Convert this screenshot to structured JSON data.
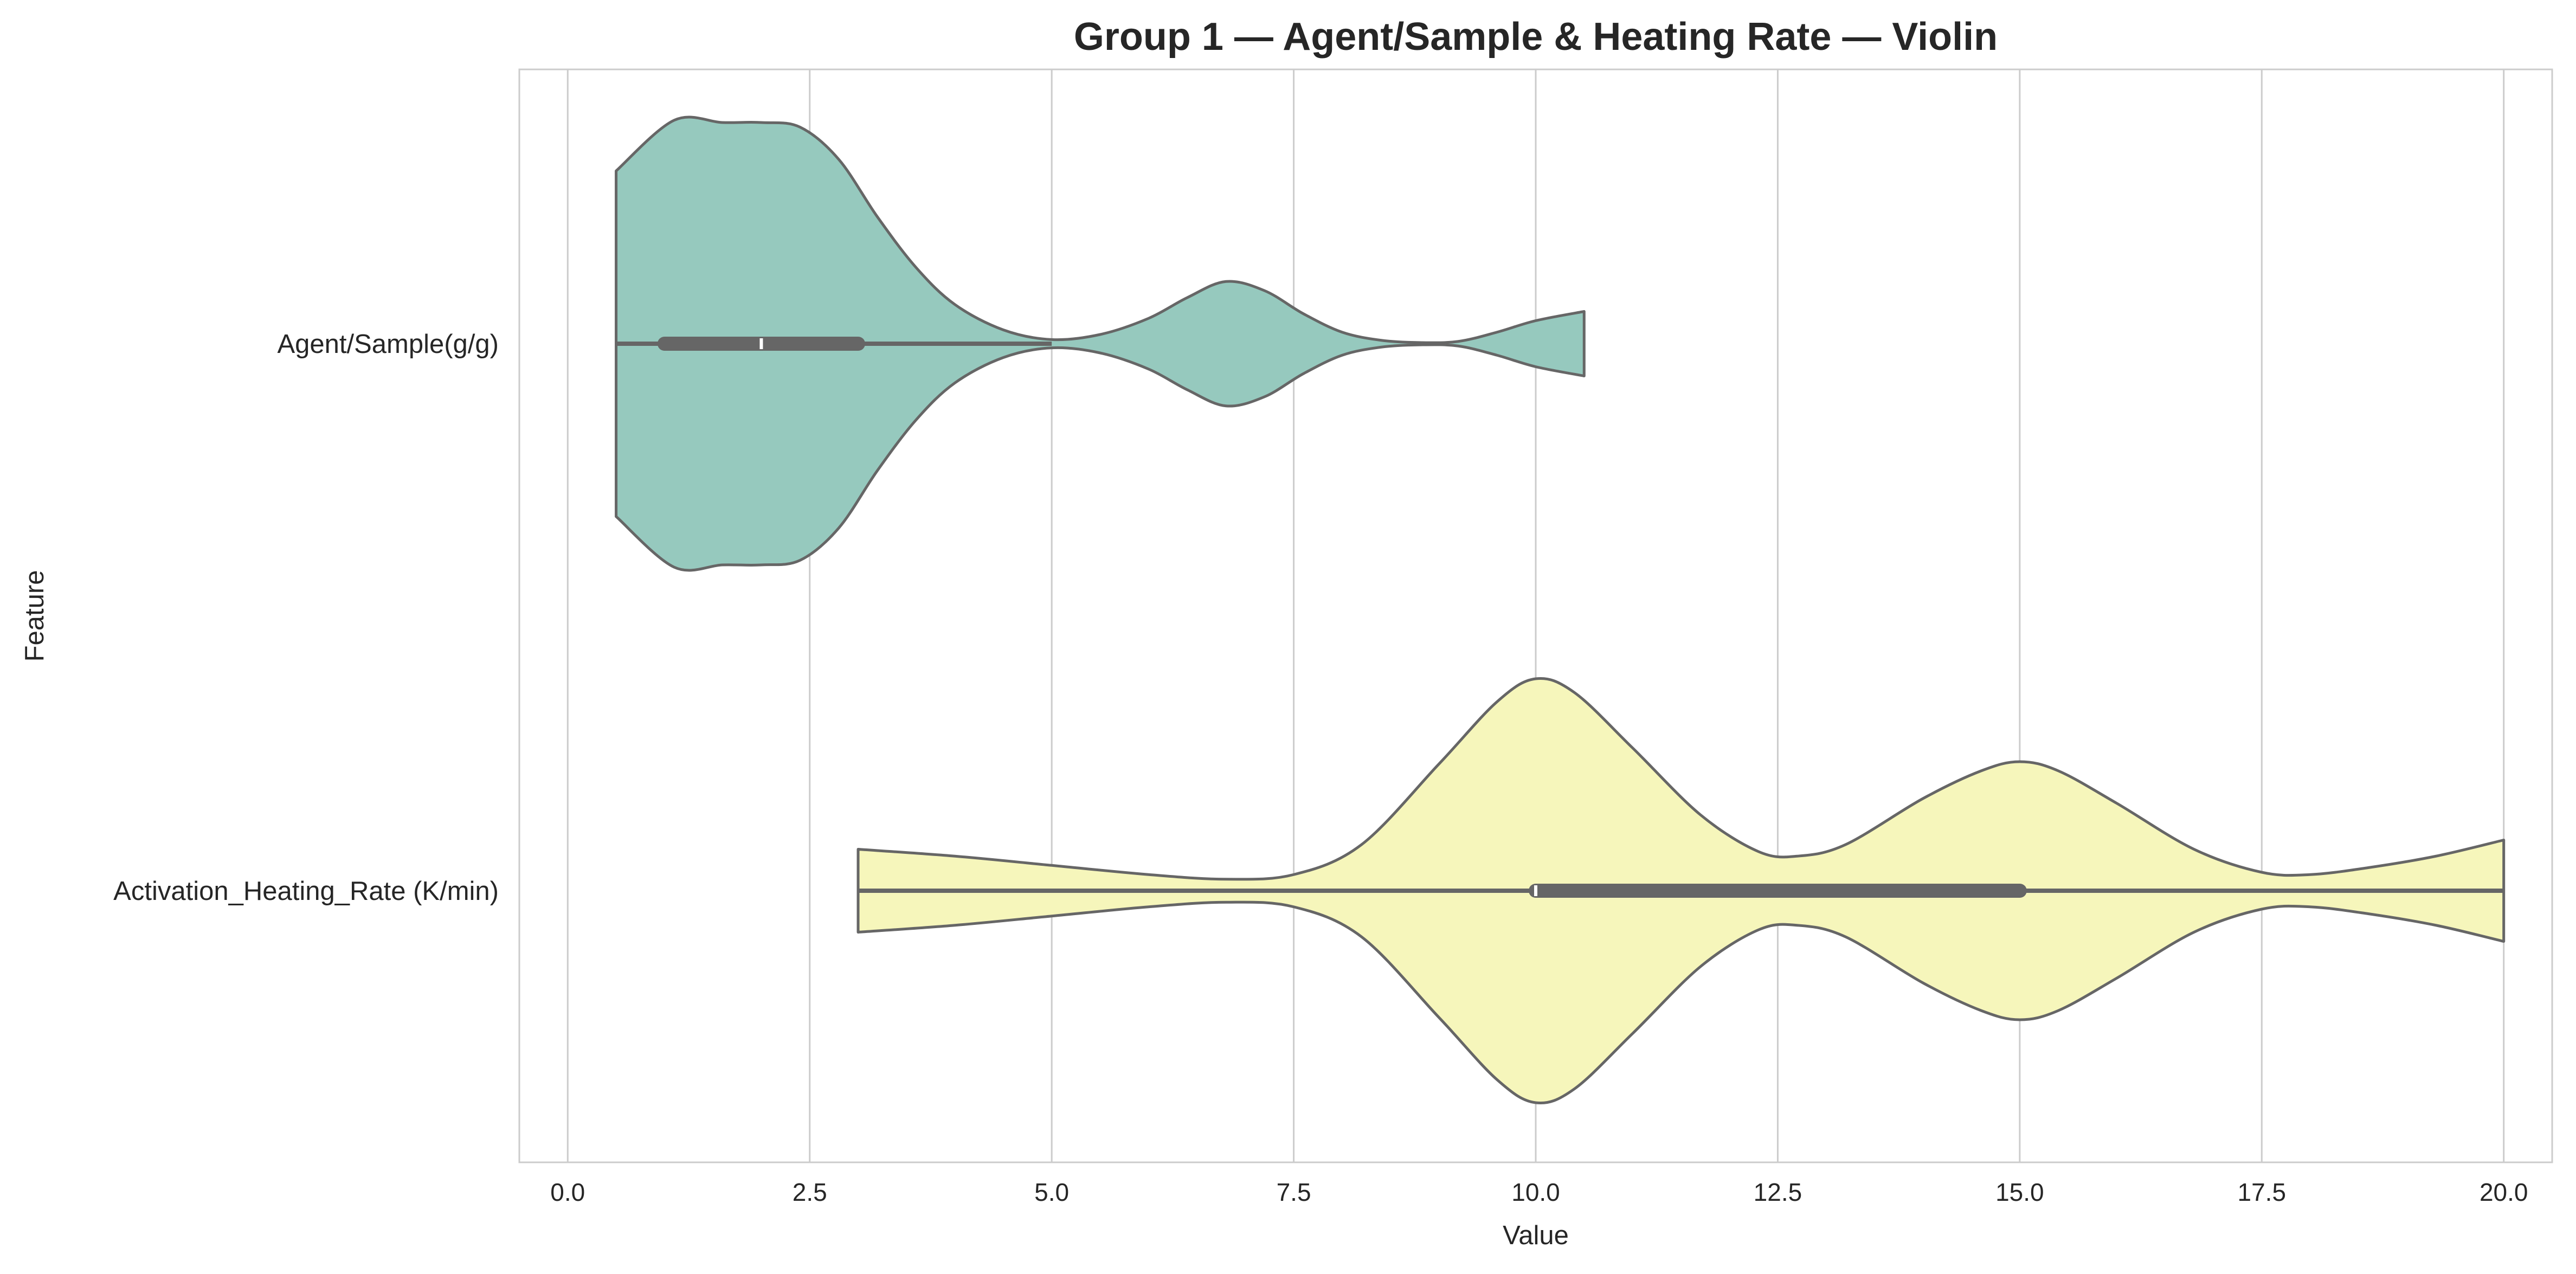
{
  "chart_data": {
    "type": "violin",
    "orientation": "horizontal",
    "title": "Group 1 — Agent/Sample & Heating Rate — Violin",
    "xlabel": "Value",
    "ylabel": "Feature",
    "xlim": [
      -0.5,
      20.5
    ],
    "xticks": [
      0.0,
      2.5,
      5.0,
      7.5,
      10.0,
      12.5,
      15.0,
      17.5,
      20.0
    ],
    "xtick_labels": [
      "0.0",
      "2.5",
      "5.0",
      "7.5",
      "10.0",
      "12.5",
      "15.0",
      "17.5",
      "20.0"
    ],
    "grid": "vertical",
    "series": [
      {
        "name": "Agent/Sample(g/g)",
        "color": "#96c9be",
        "range": [
          0.5,
          10.5
        ],
        "whisker": [
          0.5,
          5.0
        ],
        "q1": 1.0,
        "median": 2.0,
        "q3": 3.0,
        "density": [
          [
            0.5,
            0.75
          ],
          [
            1.1,
            0.97
          ],
          [
            1.6,
            0.96
          ],
          [
            2.0,
            0.96
          ],
          [
            2.4,
            0.94
          ],
          [
            2.8,
            0.8
          ],
          [
            3.2,
            0.55
          ],
          [
            3.6,
            0.33
          ],
          [
            4.0,
            0.17
          ],
          [
            4.5,
            0.06
          ],
          [
            5.0,
            0.018
          ],
          [
            5.5,
            0.04
          ],
          [
            6.0,
            0.11
          ],
          [
            6.4,
            0.2
          ],
          [
            6.8,
            0.27
          ],
          [
            7.2,
            0.23
          ],
          [
            7.6,
            0.13
          ],
          [
            8.0,
            0.05
          ],
          [
            8.4,
            0.015
          ],
          [
            8.8,
            0.005
          ],
          [
            9.2,
            0.01
          ],
          [
            9.6,
            0.05
          ],
          [
            10.0,
            0.1
          ],
          [
            10.5,
            0.14
          ]
        ]
      },
      {
        "name": "Activation_Heating_Rate (K/min)",
        "color": "#f6f6bb",
        "range": [
          3.0,
          20.0
        ],
        "whisker": [
          3.0,
          20.0
        ],
        "q1": 10.0,
        "median": 10.0,
        "q3": 15.0,
        "density": [
          [
            3.0,
            0.18
          ],
          [
            4.0,
            0.15
          ],
          [
            5.0,
            0.11
          ],
          [
            6.0,
            0.07
          ],
          [
            6.8,
            0.05
          ],
          [
            7.5,
            0.07
          ],
          [
            8.2,
            0.2
          ],
          [
            9.0,
            0.55
          ],
          [
            9.6,
            0.82
          ],
          [
            10.0,
            0.92
          ],
          [
            10.4,
            0.86
          ],
          [
            11.0,
            0.62
          ],
          [
            11.7,
            0.33
          ],
          [
            12.3,
            0.17
          ],
          [
            12.7,
            0.15
          ],
          [
            13.2,
            0.2
          ],
          [
            14.0,
            0.4
          ],
          [
            14.6,
            0.52
          ],
          [
            15.0,
            0.56
          ],
          [
            15.4,
            0.52
          ],
          [
            16.0,
            0.38
          ],
          [
            16.8,
            0.18
          ],
          [
            17.5,
            0.08
          ],
          [
            18.0,
            0.07
          ],
          [
            18.6,
            0.1
          ],
          [
            19.3,
            0.15
          ],
          [
            20.0,
            0.22
          ]
        ]
      }
    ]
  }
}
